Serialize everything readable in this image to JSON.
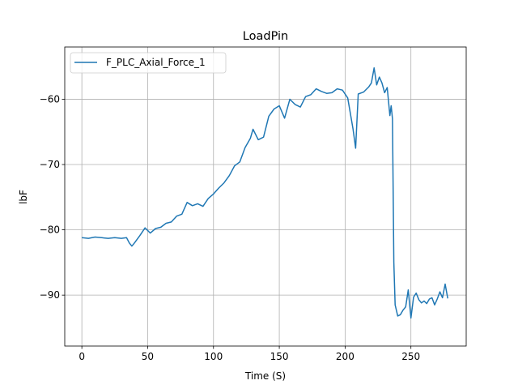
{
  "chart_data": {
    "type": "line",
    "title": "LoadPin",
    "xlabel": "Time (S)",
    "ylabel": "lbF",
    "xlim": [
      -13,
      292
    ],
    "ylim": [
      -97.8,
      -52
    ],
    "xticks": [
      0,
      50,
      100,
      150,
      200,
      250
    ],
    "yticks": [
      -90,
      -80,
      -70,
      -60
    ],
    "grid": true,
    "legend_position": "top-left",
    "series": [
      {
        "name": "F_PLC_Axial_Force_1",
        "color": "#1f77b4",
        "x": [
          0,
          5,
          10,
          15,
          20,
          25,
          30,
          34,
          36,
          38,
          40,
          44,
          48,
          52,
          56,
          60,
          64,
          68,
          72,
          76,
          80,
          84,
          88,
          92,
          96,
          100,
          104,
          108,
          112,
          116,
          120,
          124,
          128,
          130,
          134,
          138,
          142,
          146,
          150,
          154,
          158,
          162,
          166,
          170,
          174,
          178,
          182,
          186,
          190,
          194,
          198,
          202,
          206,
          208,
          210,
          214,
          218,
          220,
          222,
          224,
          226,
          228,
          230,
          232,
          234,
          235,
          236,
          237,
          238,
          240,
          242,
          244,
          246,
          248,
          250,
          252,
          254,
          256,
          258,
          260,
          262,
          264,
          266,
          268,
          270,
          272,
          274,
          276,
          278
        ],
        "y": [
          -81.2,
          -81.3,
          -81.1,
          -81.2,
          -81.3,
          -81.2,
          -81.3,
          -81.2,
          -82.0,
          -82.5,
          -82.0,
          -80.9,
          -79.7,
          -80.5,
          -79.8,
          -79.6,
          -79.0,
          -78.8,
          -77.9,
          -77.6,
          -75.8,
          -76.3,
          -76.0,
          -76.4,
          -75.2,
          -74.5,
          -73.6,
          -72.8,
          -71.7,
          -70.2,
          -69.6,
          -67.4,
          -66.0,
          -64.6,
          -66.2,
          -65.8,
          -62.6,
          -61.5,
          -61.0,
          -62.9,
          -60.0,
          -60.8,
          -61.2,
          -59.6,
          -59.3,
          -58.4,
          -58.8,
          -59.1,
          -59.0,
          -58.4,
          -58.6,
          -59.8,
          -64.5,
          -67.5,
          -59.2,
          -58.9,
          -58.1,
          -57.5,
          -55.2,
          -57.8,
          -56.6,
          -57.5,
          -59.0,
          -58.2,
          -62.5,
          -61.0,
          -63.0,
          -85.0,
          -91.5,
          -93.2,
          -93.0,
          -92.3,
          -91.8,
          -89.2,
          -93.5,
          -90.3,
          -89.7,
          -90.7,
          -91.2,
          -90.9,
          -91.3,
          -90.6,
          -90.4,
          -91.5,
          -90.6,
          -89.5,
          -90.4,
          -88.3,
          -90.5
        ]
      }
    ]
  }
}
